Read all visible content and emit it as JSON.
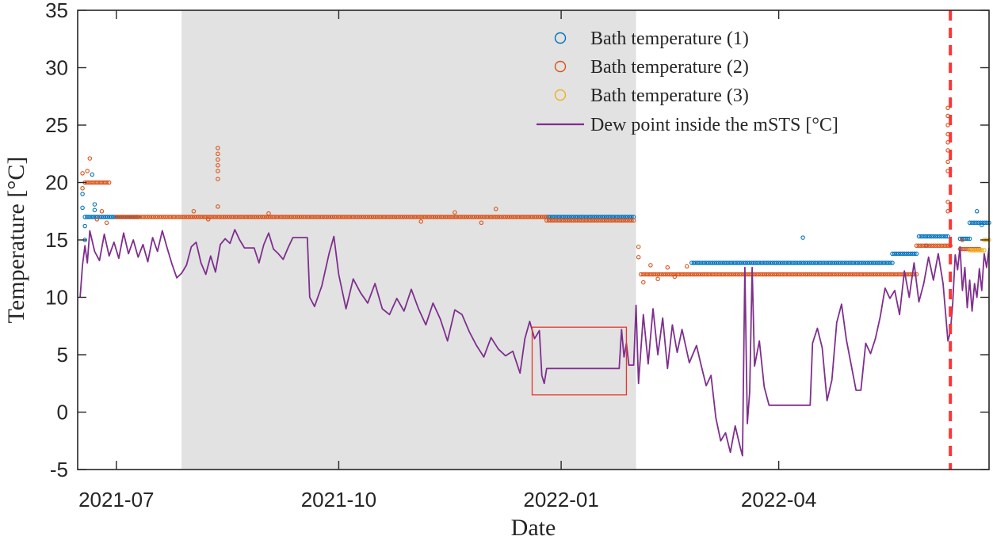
{
  "chart_data": {
    "type": "scatter",
    "xlabel": "Date",
    "ylabel": "Temperature [°C]",
    "xlim": [
      "2021-06-15",
      "2022-06-27"
    ],
    "ylim": [
      -5,
      35
    ],
    "x_ticks": [
      "2021-07-01",
      "2021-10-01",
      "2022-01-01",
      "2022-04-01"
    ],
    "x_tick_labels": [
      "2021-07",
      "2021-10",
      "2022-01",
      "2022-04"
    ],
    "y_ticks": [
      -5,
      0,
      5,
      10,
      15,
      20,
      25,
      30,
      35
    ],
    "grid": false,
    "legend_position": "top-right",
    "shaded_period": {
      "start": "2021-07-28",
      "end": "2022-02-01",
      "color": "#e2e2e2"
    },
    "highlight_box": {
      "x_start": "2021-12-20",
      "x_end": "2022-01-28",
      "y_low": 1.5,
      "y_high": 7.4,
      "color": "#e8372c"
    },
    "vertical_marker": {
      "x": "2022-06-11",
      "color": "#ff3333"
    },
    "series": [
      {
        "name": "Bath temperature (1)",
        "kind": "markers",
        "color": "#0072bd",
        "segments": [
          {
            "start": "2021-06-18",
            "end": "2021-07-10",
            "value": 17.0
          },
          {
            "start": "2021-12-26",
            "end": "2022-01-31",
            "value": 17.0
          },
          {
            "start": "2022-02-24",
            "end": "2022-05-18",
            "value": 13.0
          },
          {
            "start": "2022-05-18",
            "end": "2022-05-28",
            "value": 13.8
          },
          {
            "start": "2022-05-29",
            "end": "2022-06-10",
            "value": 15.3
          },
          {
            "start": "2022-06-15",
            "end": "2022-06-19",
            "value": 15.1
          },
          {
            "start": "2022-06-19",
            "end": "2022-06-27",
            "value": 16.5
          }
        ],
        "extra_points": [
          [
            "2021-06-17",
            19.0
          ],
          [
            "2021-06-17",
            17.8
          ],
          [
            "2021-06-18",
            16.2
          ],
          [
            "2021-06-18",
            15.0
          ],
          [
            "2021-06-21",
            20.7
          ],
          [
            "2021-06-22",
            18.1
          ],
          [
            "2021-06-22",
            17.6
          ],
          [
            "2022-04-11",
            15.2
          ],
          [
            "2022-06-01",
            14.5
          ],
          [
            "2022-06-22",
            17.5
          ],
          [
            "2022-06-24",
            16.3
          ]
        ]
      },
      {
        "name": "Bath temperature (2)",
        "kind": "markers",
        "color": "#d95319",
        "segments": [
          {
            "start": "2021-06-18",
            "end": "2021-06-28",
            "value": 20.0
          },
          {
            "start": "2021-07-01",
            "end": "2021-12-26",
            "value": 17.0
          },
          {
            "start": "2021-12-26",
            "end": "2022-01-31",
            "value": 16.7
          },
          {
            "start": "2022-02-03",
            "end": "2022-05-28",
            "value": 12.0
          },
          {
            "start": "2022-05-28",
            "end": "2022-06-11",
            "value": 14.5
          },
          {
            "start": "2022-06-15",
            "end": "2022-06-23",
            "value": 14.2
          }
        ],
        "extra_points": [
          [
            "2021-06-17",
            20.8
          ],
          [
            "2021-06-17",
            19.5
          ],
          [
            "2021-06-20",
            22.1
          ],
          [
            "2021-06-19",
            21.0
          ],
          [
            "2021-06-23",
            16.8
          ],
          [
            "2021-06-25",
            17.5
          ],
          [
            "2021-06-27",
            16.5
          ],
          [
            "2021-08-12",
            23.0
          ],
          [
            "2021-08-12",
            22.5
          ],
          [
            "2021-08-12",
            22.0
          ],
          [
            "2021-08-12",
            21.5
          ],
          [
            "2021-08-12",
            21.0
          ],
          [
            "2021-08-12",
            20.3
          ],
          [
            "2021-08-12",
            17.9
          ],
          [
            "2021-08-02",
            17.5
          ],
          [
            "2021-08-08",
            16.8
          ],
          [
            "2021-09-02",
            17.3
          ],
          [
            "2021-11-04",
            16.6
          ],
          [
            "2021-11-18",
            17.4
          ],
          [
            "2021-11-29",
            16.5
          ],
          [
            "2021-12-05",
            17.7
          ],
          [
            "2022-02-02",
            14.4
          ],
          [
            "2022-02-02",
            13.5
          ],
          [
            "2022-02-04",
            11.3
          ],
          [
            "2022-02-07",
            12.8
          ],
          [
            "2022-02-10",
            11.6
          ],
          [
            "2022-02-14",
            12.6
          ],
          [
            "2022-02-17",
            11.8
          ],
          [
            "2022-02-22",
            12.7
          ],
          [
            "2022-06-10",
            26.5
          ],
          [
            "2022-06-10",
            25.8
          ],
          [
            "2022-06-10",
            25.0
          ],
          [
            "2022-06-10",
            24.2
          ],
          [
            "2022-06-10",
            23.5
          ],
          [
            "2022-06-10",
            22.8
          ],
          [
            "2022-06-10",
            21.8
          ],
          [
            "2022-06-10",
            21.0
          ],
          [
            "2022-06-10",
            18.3
          ],
          [
            "2022-06-10",
            17.5
          ],
          [
            "2022-06-16",
            15.0
          ]
        ]
      },
      {
        "name": "Bath temperature (3)",
        "kind": "markers",
        "color": "#edb120",
        "segments": [
          {
            "start": "2022-06-19",
            "end": "2022-06-25",
            "value": 14.1
          },
          {
            "start": "2022-06-25",
            "end": "2022-06-27",
            "value": 15.0
          }
        ],
        "extra_points": []
      },
      {
        "name": "Dew point inside the mSTS [°C]",
        "kind": "line",
        "color": "#7e2f8e",
        "points": [
          [
            "2021-06-16",
            10.0
          ],
          [
            "2021-06-17",
            12.8
          ],
          [
            "2021-06-18",
            14.5
          ],
          [
            "2021-06-19",
            13.0
          ],
          [
            "2021-06-20",
            15.8
          ],
          [
            "2021-06-22",
            14.0
          ],
          [
            "2021-06-24",
            13.2
          ],
          [
            "2021-06-26",
            15.5
          ],
          [
            "2021-06-28",
            13.6
          ],
          [
            "2021-06-30",
            14.8
          ],
          [
            "2021-07-02",
            13.4
          ],
          [
            "2021-07-04",
            15.6
          ],
          [
            "2021-07-06",
            13.8
          ],
          [
            "2021-07-08",
            15.0
          ],
          [
            "2021-07-10",
            13.5
          ],
          [
            "2021-07-12",
            14.6
          ],
          [
            "2021-07-14",
            13.1
          ],
          [
            "2021-07-16",
            15.2
          ],
          [
            "2021-07-18",
            14.0
          ],
          [
            "2021-07-20",
            15.8
          ],
          [
            "2021-07-22",
            14.3
          ],
          [
            "2021-07-24",
            12.9
          ],
          [
            "2021-07-26",
            11.7
          ],
          [
            "2021-07-28",
            12.1
          ],
          [
            "2021-07-30",
            12.8
          ],
          [
            "2021-08-01",
            14.4
          ],
          [
            "2021-08-03",
            14.8
          ],
          [
            "2021-08-05",
            13.0
          ],
          [
            "2021-08-07",
            12.0
          ],
          [
            "2021-08-09",
            13.6
          ],
          [
            "2021-08-11",
            12.2
          ],
          [
            "2021-08-13",
            14.6
          ],
          [
            "2021-08-15",
            15.1
          ],
          [
            "2021-08-17",
            14.7
          ],
          [
            "2021-08-19",
            15.9
          ],
          [
            "2021-08-21",
            15.0
          ],
          [
            "2021-08-23",
            14.3
          ],
          [
            "2021-08-25",
            14.3
          ],
          [
            "2021-08-27",
            14.3
          ],
          [
            "2021-08-29",
            13.0
          ],
          [
            "2021-08-31",
            14.6
          ],
          [
            "2021-09-02",
            15.6
          ],
          [
            "2021-09-04",
            14.2
          ],
          [
            "2021-09-06",
            13.8
          ],
          [
            "2021-09-08",
            13.3
          ],
          [
            "2021-09-10",
            14.3
          ],
          [
            "2021-09-12",
            15.2
          ],
          [
            "2021-09-14",
            15.2
          ],
          [
            "2021-09-16",
            15.2
          ],
          [
            "2021-09-18",
            15.2
          ],
          [
            "2021-09-19",
            10.0
          ],
          [
            "2021-09-21",
            9.2
          ],
          [
            "2021-09-24",
            11.0
          ],
          [
            "2021-09-27",
            13.8
          ],
          [
            "2021-09-29",
            15.3
          ],
          [
            "2021-10-01",
            12.0
          ],
          [
            "2021-10-04",
            9.0
          ],
          [
            "2021-10-07",
            11.6
          ],
          [
            "2021-10-10",
            10.4
          ],
          [
            "2021-10-13",
            9.5
          ],
          [
            "2021-10-16",
            11.2
          ],
          [
            "2021-10-19",
            9.0
          ],
          [
            "2021-10-22",
            8.5
          ],
          [
            "2021-10-25",
            9.9
          ],
          [
            "2021-10-28",
            8.8
          ],
          [
            "2021-10-31",
            10.7
          ],
          [
            "2021-11-03",
            9.0
          ],
          [
            "2021-11-06",
            7.6
          ],
          [
            "2021-11-09",
            9.5
          ],
          [
            "2021-11-12",
            8.1
          ],
          [
            "2021-11-15",
            6.2
          ],
          [
            "2021-11-18",
            8.9
          ],
          [
            "2021-11-21",
            8.5
          ],
          [
            "2021-11-24",
            7.0
          ],
          [
            "2021-11-27",
            5.8
          ],
          [
            "2021-11-30",
            4.8
          ],
          [
            "2021-12-03",
            6.5
          ],
          [
            "2021-12-06",
            5.5
          ],
          [
            "2021-12-09",
            4.9
          ],
          [
            "2021-12-12",
            5.3
          ],
          [
            "2021-12-15",
            3.4
          ],
          [
            "2021-12-17",
            6.4
          ],
          [
            "2021-12-19",
            7.9
          ],
          [
            "2021-12-21",
            6.4
          ],
          [
            "2021-12-23",
            7.1
          ],
          [
            "2021-12-24",
            3.2
          ],
          [
            "2021-12-25",
            2.5
          ],
          [
            "2021-12-26",
            3.8
          ],
          [
            "2022-01-10",
            3.8
          ],
          [
            "2022-01-25",
            3.8
          ],
          [
            "2022-01-26",
            7.2
          ],
          [
            "2022-01-27",
            4.8
          ],
          [
            "2022-01-28",
            6.0
          ],
          [
            "2022-01-29",
            4.1
          ],
          [
            "2022-01-31",
            4.1
          ],
          [
            "2022-02-01",
            9.3
          ],
          [
            "2022-02-02",
            2.5
          ],
          [
            "2022-02-04",
            8.5
          ],
          [
            "2022-02-06",
            4.2
          ],
          [
            "2022-02-08",
            9.0
          ],
          [
            "2022-02-10",
            5.0
          ],
          [
            "2022-02-12",
            8.2
          ],
          [
            "2022-02-14",
            3.8
          ],
          [
            "2022-02-16",
            7.6
          ],
          [
            "2022-02-18",
            5.2
          ],
          [
            "2022-02-20",
            7.2
          ],
          [
            "2022-02-23",
            4.3
          ],
          [
            "2022-02-26",
            5.8
          ],
          [
            "2022-02-28",
            4.0
          ],
          [
            "2022-03-02",
            2.3
          ],
          [
            "2022-03-04",
            3.2
          ],
          [
            "2022-03-06",
            -0.5
          ],
          [
            "2022-03-08",
            -2.5
          ],
          [
            "2022-03-10",
            -1.8
          ],
          [
            "2022-03-12",
            -3.5
          ],
          [
            "2022-03-14",
            -1.2
          ],
          [
            "2022-03-16",
            -3.0
          ],
          [
            "2022-03-17",
            -3.8
          ],
          [
            "2022-03-18",
            12.6
          ],
          [
            "2022-03-19",
            -1.0
          ],
          [
            "2022-03-20",
            1.8
          ],
          [
            "2022-03-21",
            12.6
          ],
          [
            "2022-03-22",
            4.0
          ],
          [
            "2022-03-24",
            6.2
          ],
          [
            "2022-03-26",
            2.2
          ],
          [
            "2022-03-28",
            0.6
          ],
          [
            "2022-04-05",
            0.6
          ],
          [
            "2022-04-14",
            0.6
          ],
          [
            "2022-04-15",
            6.0
          ],
          [
            "2022-04-17",
            7.3
          ],
          [
            "2022-04-19",
            5.6
          ],
          [
            "2022-04-21",
            1.0
          ],
          [
            "2022-04-23",
            2.8
          ],
          [
            "2022-04-25",
            7.8
          ],
          [
            "2022-04-27",
            9.4
          ],
          [
            "2022-04-29",
            6.3
          ],
          [
            "2022-05-01",
            4.1
          ],
          [
            "2022-05-03",
            1.9
          ],
          [
            "2022-05-05",
            1.9
          ],
          [
            "2022-05-07",
            6.0
          ],
          [
            "2022-05-09",
            5.1
          ],
          [
            "2022-05-11",
            6.4
          ],
          [
            "2022-05-13",
            8.3
          ],
          [
            "2022-05-15",
            10.8
          ],
          [
            "2022-05-17",
            9.9
          ],
          [
            "2022-05-19",
            10.6
          ],
          [
            "2022-05-21",
            8.5
          ],
          [
            "2022-05-23",
            12.3
          ],
          [
            "2022-05-25",
            10.0
          ],
          [
            "2022-05-27",
            13.0
          ],
          [
            "2022-05-29",
            9.6
          ],
          [
            "2022-05-31",
            11.2
          ],
          [
            "2022-06-02",
            13.5
          ],
          [
            "2022-06-04",
            11.5
          ],
          [
            "2022-06-06",
            13.8
          ],
          [
            "2022-06-08",
            11.2
          ],
          [
            "2022-06-10",
            6.2
          ],
          [
            "2022-06-11",
            7.0
          ],
          [
            "2022-06-12",
            9.5
          ],
          [
            "2022-06-13",
            13.7
          ],
          [
            "2022-06-14",
            12.4
          ],
          [
            "2022-06-15",
            14.4
          ],
          [
            "2022-06-16",
            10.6
          ],
          [
            "2022-06-17",
            12.6
          ],
          [
            "2022-06-18",
            9.1
          ],
          [
            "2022-06-19",
            11.5
          ],
          [
            "2022-06-20",
            8.8
          ],
          [
            "2022-06-21",
            11.2
          ],
          [
            "2022-06-22",
            10.0
          ],
          [
            "2022-06-23",
            12.5
          ],
          [
            "2022-06-24",
            10.6
          ],
          [
            "2022-06-25",
            13.8
          ],
          [
            "2022-06-26",
            12.6
          ],
          [
            "2022-06-27",
            14.3
          ]
        ]
      }
    ]
  }
}
